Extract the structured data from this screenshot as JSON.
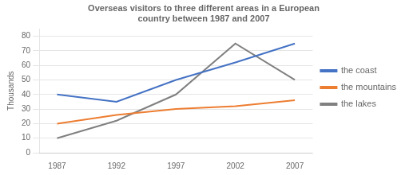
{
  "chart_data": {
    "type": "line",
    "title": "Overseas visitors to three different areas in a European\ncountry between 1987 and 2007",
    "y_label": "Thousands",
    "x": [
      1987,
      1992,
      1997,
      2002,
      2007
    ],
    "series": [
      {
        "name": "the coast",
        "color": "#4472C4",
        "values": [
          40,
          35,
          50,
          62,
          75
        ]
      },
      {
        "name": "the mountains",
        "color": "#ED7D31",
        "values": [
          20,
          26,
          30,
          32,
          36
        ]
      },
      {
        "name": "the lakes",
        "color": "#808080",
        "values": [
          10,
          22,
          40,
          75,
          50
        ]
      }
    ],
    "xlim": [
      1985.5,
      2008.5
    ],
    "xticks": [
      1987,
      1992,
      1997,
      2002,
      2007
    ],
    "ylim": [
      0,
      85
    ],
    "yticks": [
      0,
      10,
      20,
      30,
      40,
      50,
      60,
      70,
      80
    ],
    "grid": "y",
    "legend": "right"
  }
}
